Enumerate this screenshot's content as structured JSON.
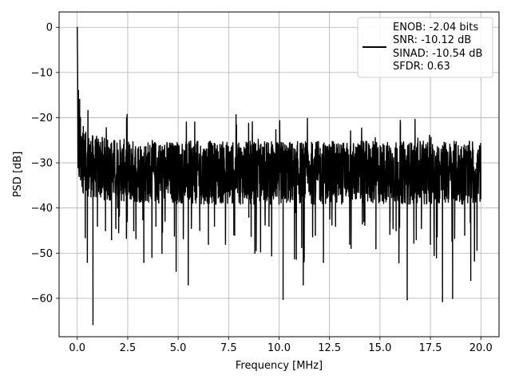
{
  "chart_data": {
    "type": "line",
    "xlabel": "Frequency [MHz]",
    "ylabel": "PSD [dB]",
    "xlim": [
      -0.9,
      20.9
    ],
    "ylim": [
      -68.5,
      3.4
    ],
    "xticks": [
      0.0,
      2.5,
      5.0,
      7.5,
      10.0,
      12.5,
      15.0,
      17.5,
      20.0
    ],
    "xtick_labels": [
      "0.0",
      "2.5",
      "5.0",
      "7.5",
      "10.0",
      "12.5",
      "15.0",
      "17.5",
      "20.0"
    ],
    "yticks": [
      0,
      -10,
      -20,
      -30,
      -40,
      -50,
      -60
    ],
    "ytick_labels": [
      "0",
      "−10",
      "−20",
      "−30",
      "−40",
      "−50",
      "−60"
    ],
    "grid": true,
    "legend_position": "top-right",
    "legend_lines": [
      "ENOB: -2.04 bits",
      "SNR: -10.12 dB",
      "SINAD: -10.54 dB",
      "SFDR: 0.63"
    ],
    "series": [
      {
        "color": "#000000",
        "description": "dense noisy PSD trace",
        "x": [
          0.0,
          0.02,
          0.04,
          0.06,
          0.08,
          0.12,
          0.16,
          0.2,
          0.25,
          0.3,
          0.4,
          0.5,
          0.6,
          0.78,
          0.9,
          1.0,
          1.2,
          1.4,
          1.5,
          1.7,
          2.0,
          2.3,
          2.5,
          2.8,
          3.0,
          3.3,
          3.6,
          3.9,
          4.2,
          4.6,
          4.9,
          5.2,
          5.5,
          5.8,
          6.2,
          6.5,
          6.8,
          7.2,
          7.5,
          7.8,
          8.2,
          8.5,
          8.8,
          9.2,
          9.5,
          9.8,
          10.2,
          10.5,
          10.8,
          11.2,
          11.5,
          11.8,
          12.2,
          12.5,
          12.8,
          13.2,
          13.5,
          13.8,
          14.2,
          14.5,
          14.8,
          15.2,
          15.5,
          15.8,
          16.2,
          16.35,
          16.8,
          17.2,
          17.5,
          17.8,
          18.1,
          18.3,
          18.6,
          18.9,
          19.2,
          19.5,
          19.8,
          20.0
        ],
        "y": [
          0,
          -10,
          -18,
          -14,
          -22,
          -16,
          -20,
          -25,
          -30,
          -22,
          -30,
          -52,
          -26,
          -65.8,
          -30,
          -44,
          -28,
          -45,
          -25,
          -47,
          -40,
          -26,
          -37,
          -45,
          -27,
          -52,
          -28,
          -44,
          -50,
          -29,
          -54,
          -30,
          -57,
          -31,
          -37,
          -48,
          -44,
          -27,
          -32,
          -46,
          -33,
          -42,
          -50,
          -34,
          -44,
          -28,
          -60.2,
          -36,
          -41,
          -57,
          -32,
          -46,
          -52,
          -30,
          -44,
          -30,
          -48,
          -36,
          -43,
          -32,
          -49,
          -34,
          -43,
          -45,
          -36,
          -60.3,
          -47,
          -35,
          -48,
          -51,
          -60.7,
          -36,
          -60,
          -32,
          -46,
          -56,
          -35,
          -30
        ]
      }
    ]
  }
}
